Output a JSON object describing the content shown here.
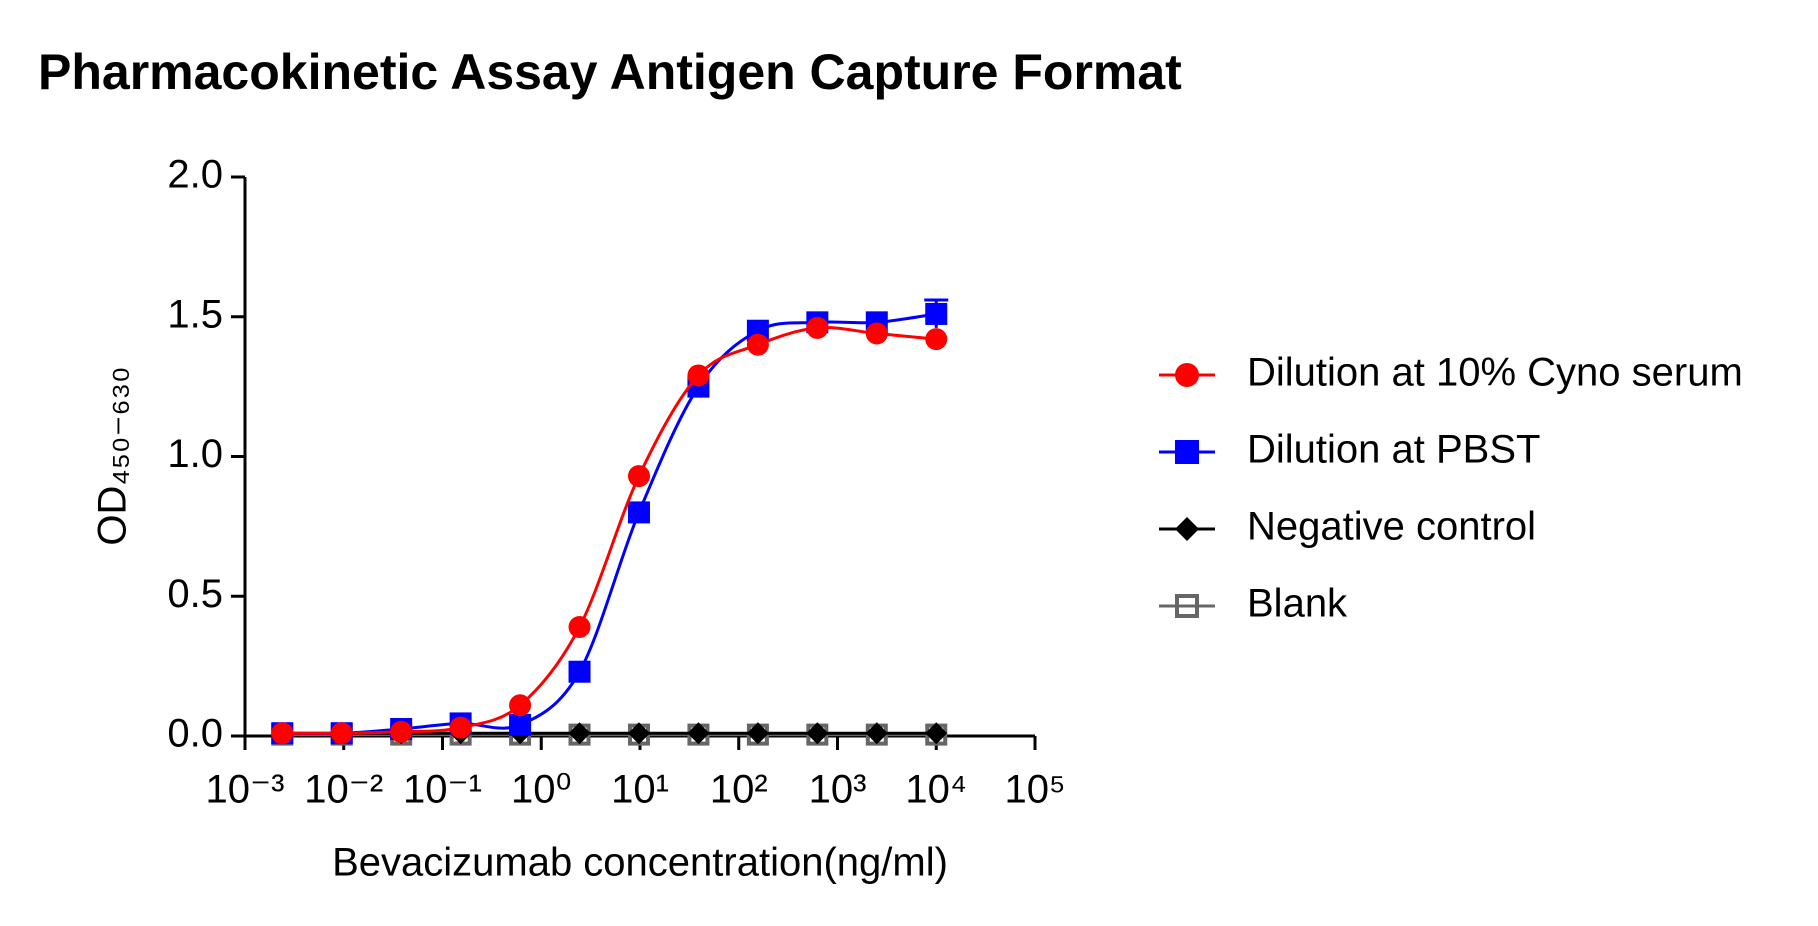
{
  "chart_data": {
    "type": "line",
    "title": "Pharmacokinetic Assay Antigen Capture Format",
    "x_label": "Bevacizumab concentration(ng/ml)",
    "y_label": "OD₄₅₀₋₆₃₀",
    "x_scale": "log",
    "x": [
      0.002384185791015625,
      0.0095367431640625,
      0.03814697265625,
      0.152587890625,
      0.6103515625,
      2.44140625,
      9.765625,
      39.0625,
      156.25,
      625,
      2500,
      10000
    ],
    "series": [
      {
        "name": "Dilution at 10% Cyno serum",
        "color": "#ff0000",
        "marker": "circle",
        "values": [
          0.01,
          0.01,
          0.015,
          0.03,
          0.11,
          0.39,
          0.93,
          1.29,
          1.4,
          1.46,
          1.44,
          1.42
        ]
      },
      {
        "name": "Dilution at PBST",
        "color": "#0000ff",
        "marker": "square",
        "values": [
          0.01,
          0.01,
          0.025,
          0.045,
          0.04,
          0.23,
          0.8,
          1.25,
          1.45,
          1.48,
          1.48,
          1.51
        ],
        "errors": [
          null,
          null,
          null,
          null,
          null,
          null,
          null,
          null,
          null,
          null,
          null,
          0.05
        ]
      },
      {
        "name": "Negative control",
        "color": "#000000",
        "marker": "diamond",
        "values": [
          0.01,
          0.01,
          0.01,
          0.01,
          0.01,
          0.01,
          0.01,
          0.01,
          0.01,
          0.01,
          0.01,
          0.01
        ]
      },
      {
        "name": "Blank",
        "color": "#666666",
        "marker": "open-square",
        "values": [
          0.005,
          0.005,
          0.005,
          0.005,
          0.005,
          0.005,
          0.005,
          0.005,
          0.005,
          0.005,
          0.005,
          0.005
        ]
      }
    ],
    "xlim": [
      0.001,
      100000
    ],
    "xticks": [
      {
        "value": 0.001,
        "label": "10⁻³"
      },
      {
        "value": 0.01,
        "label": "10⁻²"
      },
      {
        "value": 0.1,
        "label": "10⁻¹"
      },
      {
        "value": 1,
        "label": "10⁰"
      },
      {
        "value": 10,
        "label": "10¹"
      },
      {
        "value": 100,
        "label": "10²"
      },
      {
        "value": 1000,
        "label": "10³"
      },
      {
        "value": 10000,
        "label": "10⁴"
      },
      {
        "value": 100000,
        "label": "10⁵"
      }
    ],
    "ylim": [
      0,
      2
    ],
    "yticks": [
      {
        "value": 0,
        "label": "0.0"
      },
      0.5,
      {
        "value": 1,
        "label": "1.0"
      },
      1.5,
      {
        "value": 2,
        "label": "2.0"
      }
    ],
    "legend": "right"
  }
}
